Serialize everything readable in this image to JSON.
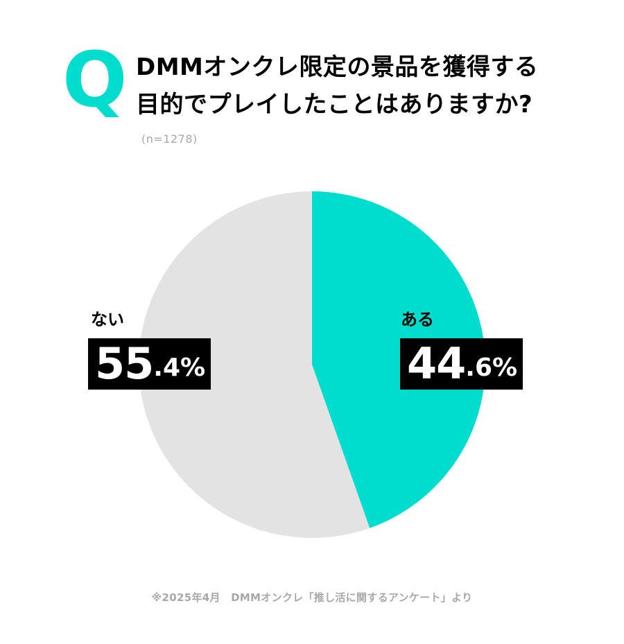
{
  "question_mark": "Q",
  "colors": {
    "accent": "#00dccd",
    "other": "#e3e3e3",
    "label_box": "#000000",
    "muted_text": "#a8a8a8"
  },
  "chart_data": {
    "type": "pie",
    "title_lines": [
      "DMMオンクレ限定の景品を獲得する",
      "目的でプレイしたことはありますか?"
    ],
    "sample_size": "(n=1278)",
    "slices": [
      {
        "label": "ある",
        "value": 44.6,
        "int_text": "44",
        "dec_text": ".6%",
        "color": "#00dccd"
      },
      {
        "label": "ない",
        "value": 55.4,
        "int_text": "55",
        "dec_text": ".4%",
        "color": "#e3e3e3"
      }
    ],
    "source": "※2025年4月　DMMオンクレ「推し活に関するアンケート」より"
  }
}
